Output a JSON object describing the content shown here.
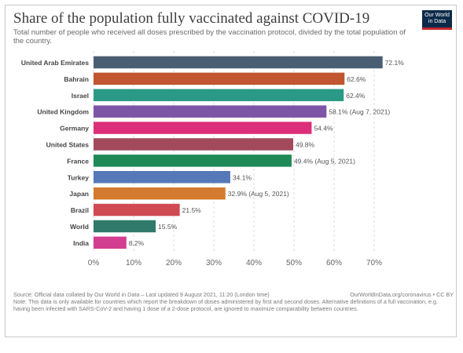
{
  "header": {
    "title": "Share of the population fully vaccinated against COVID-19",
    "subtitle": "Total number of people who received all doses prescribed by the vaccination protocol, divided by the total population of the country."
  },
  "logo": {
    "line1": "Our World",
    "line2": "in Data"
  },
  "chart_data": {
    "type": "bar",
    "orientation": "horizontal",
    "title": "Share of the population fully vaccinated against COVID-19",
    "subtitle": "Total number of people who received all doses prescribed by the vaccination protocol, divided by the total population of the country.",
    "xlim": [
      0,
      70
    ],
    "x_ticks": [
      "0%",
      "10%",
      "20%",
      "30%",
      "40%",
      "50%",
      "60%",
      "70%"
    ],
    "grid": true,
    "categories": [
      "United Arab Emirates",
      "Bahrain",
      "Israel",
      "United Kingdom",
      "Germany",
      "United States",
      "France",
      "Turkey",
      "Japan",
      "Brazil",
      "World",
      "India"
    ],
    "values": [
      72.1,
      62.6,
      62.4,
      58.1,
      54.4,
      49.8,
      49.4,
      34.1,
      32.9,
      21.5,
      15.5,
      8.2
    ],
    "labels": [
      "72.1%",
      "62.6%",
      "62.4%",
      "58.1% (Aug 7, 2021)",
      "54.4%",
      "49.8%",
      "49.4% (Aug 5, 2021)",
      "34.1%",
      "32.9% (Aug 5, 2021)",
      "21.5%",
      "15.5%",
      "8.2%"
    ],
    "colors": [
      "#4a5e73",
      "#c05530",
      "#2a9a86",
      "#7d55a6",
      "#dc2f7a",
      "#a24a5c",
      "#1f8a57",
      "#5578b8",
      "#d47a2e",
      "#d04a52",
      "#2f7a6a",
      "#d23e90"
    ]
  },
  "footer": {
    "source": "Source: Official data collated by Our World in Data – Last updated 9 August 2021, 11:20 (London time)",
    "url": "OurWorldInData.org/coronavirus • CC BY",
    "note": "Note: This data is only available for countries which report the breakdown of doses administered by first and second doses. Alternative definitions of a full vaccination, e.g. having been infected with SARS-CoV-2 and having 1 dose of a 2-dose protocol, are ignored to maximize comparability between countries."
  }
}
